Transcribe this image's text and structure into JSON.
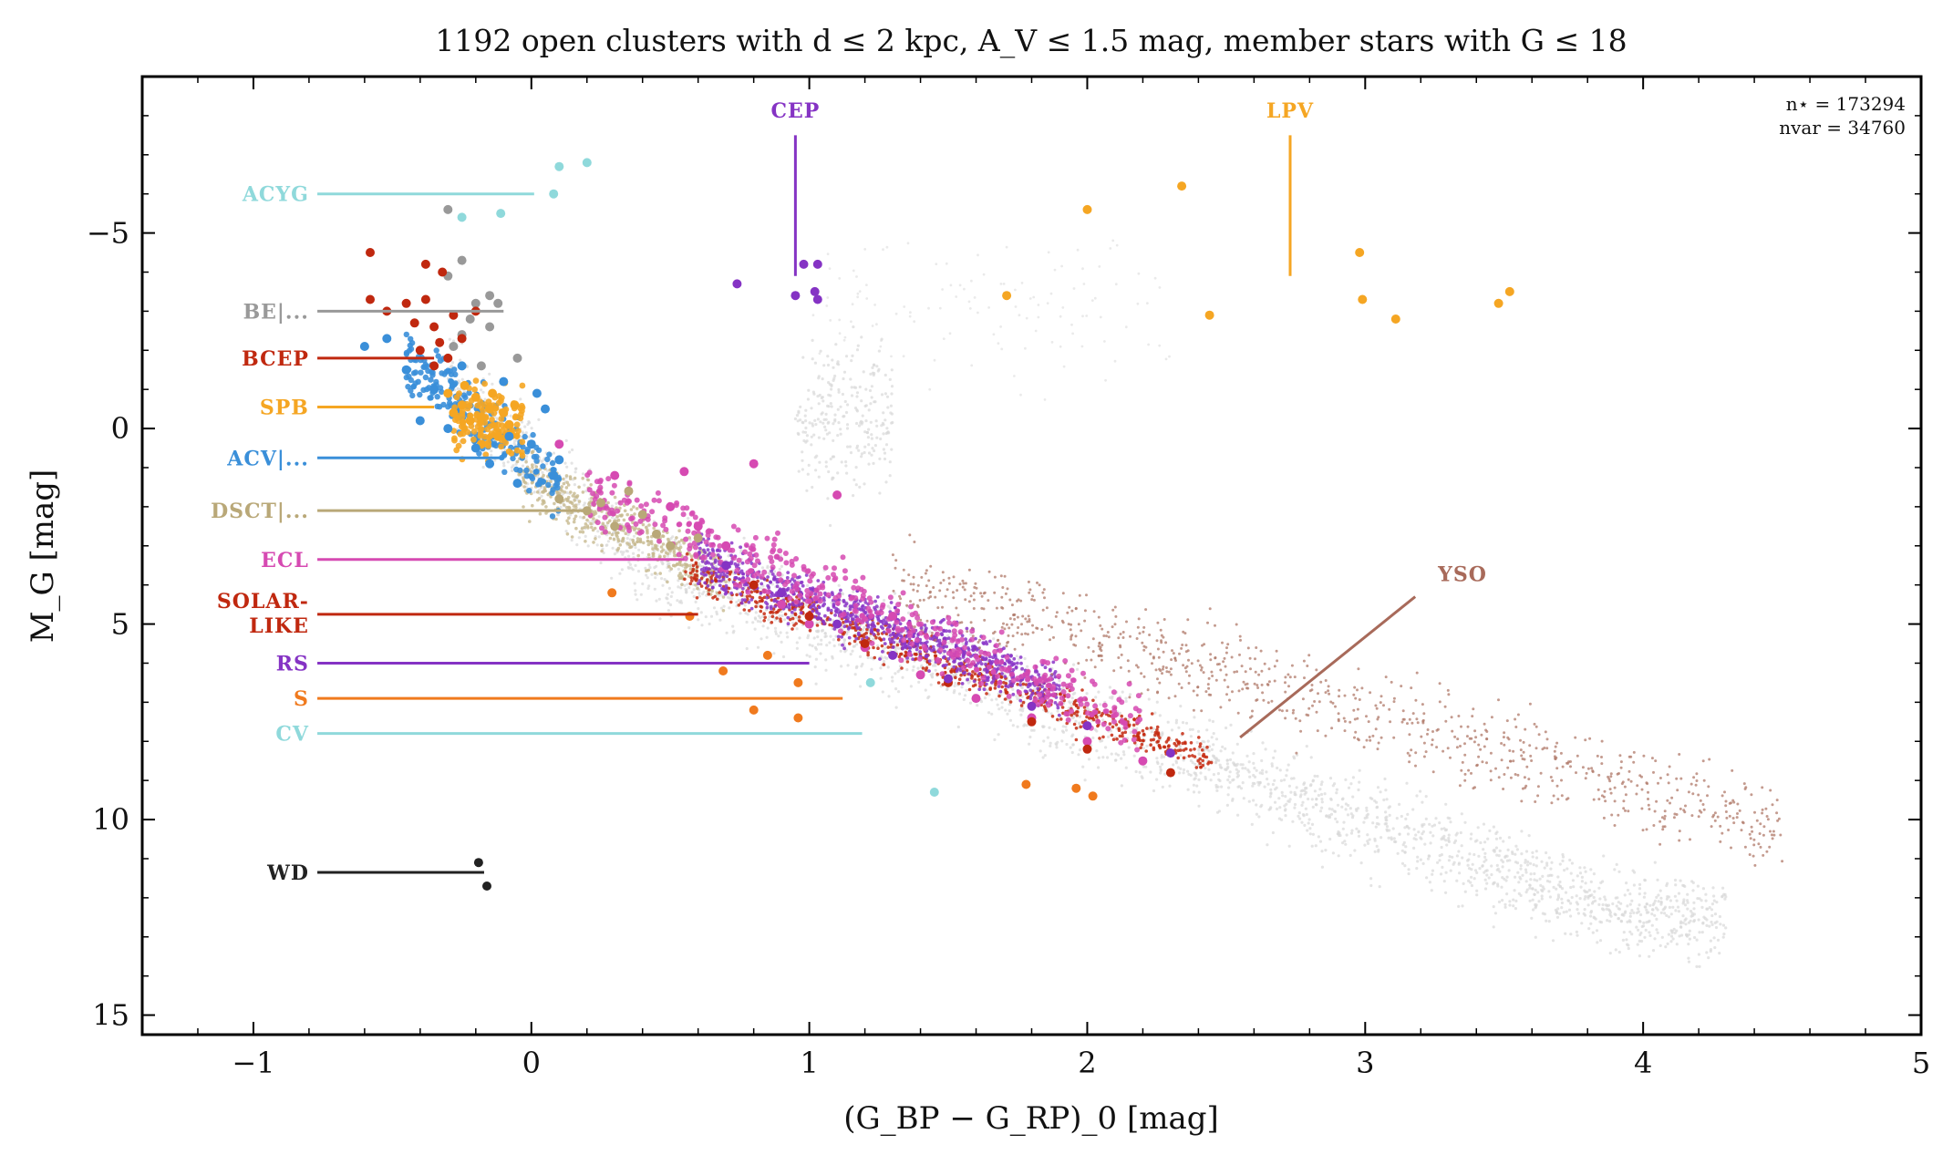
{
  "chart_data": {
    "type": "scatter",
    "title": "1192 open clusters with d ≤ 2 kpc, A_V ≤ 1.5 mag, member stars with G ≤ 18",
    "xlabel": "(G_BP − G_RP)_0 [mag]",
    "ylabel": "M_G [mag]",
    "xlim": [
      -1.4,
      5.0
    ],
    "ylim": [
      15.5,
      -9.0
    ],
    "y_inverted": true,
    "x_ticks": [
      -1,
      0,
      1,
      2,
      3,
      4,
      5
    ],
    "x_tick_labels": [
      "−1",
      "0",
      "1",
      "2",
      "3",
      "4",
      "5"
    ],
    "y_ticks": [
      -5,
      0,
      5,
      10,
      15
    ],
    "y_tick_labels": [
      "−5",
      "0",
      "5",
      "10",
      "15"
    ],
    "annotations": {
      "n_star": "n⋆ = 173294",
      "n_var": "nvar = 34760"
    },
    "background_color": "#d9d9d9",
    "series": [
      {
        "name": "ACYG",
        "color": "#8fd9db",
        "label_x": -0.8,
        "label_y": -6.0,
        "line_end_x": 0.01,
        "points": [
          [
            0.1,
            -6.7
          ],
          [
            0.2,
            -6.8
          ],
          [
            0.08,
            -6.0
          ],
          [
            -0.25,
            -5.4
          ],
          [
            -0.11,
            -5.5
          ]
        ]
      },
      {
        "name": "BE|...",
        "color": "#999999",
        "label_x": -0.8,
        "label_y": -3.0,
        "line_end_x": -0.1,
        "points": [
          [
            -0.3,
            -5.6
          ],
          [
            -0.25,
            -4.3
          ],
          [
            -0.3,
            -3.9
          ],
          [
            -0.2,
            -3.2
          ],
          [
            -0.15,
            -3.4
          ],
          [
            -0.12,
            -3.2
          ],
          [
            -0.22,
            -2.8
          ],
          [
            -0.25,
            -2.4
          ],
          [
            -0.05,
            -1.8
          ],
          [
            -0.18,
            -1.6
          ],
          [
            -0.28,
            -2.1
          ],
          [
            -0.15,
            -2.6
          ]
        ]
      },
      {
        "name": "BCEP",
        "color": "#c0280f",
        "label_x": -0.8,
        "label_y": -1.8,
        "line_end_x": -0.35,
        "points": [
          [
            -0.58,
            -4.5
          ],
          [
            -0.58,
            -3.3
          ],
          [
            -0.52,
            -3.0
          ],
          [
            -0.45,
            -3.2
          ],
          [
            -0.42,
            -2.7
          ],
          [
            -0.38,
            -3.3
          ],
          [
            -0.35,
            -2.6
          ],
          [
            -0.33,
            -2.2
          ],
          [
            -0.3,
            -1.8
          ],
          [
            -0.28,
            -2.9
          ],
          [
            -0.25,
            -2.3
          ],
          [
            -0.35,
            -1.6
          ],
          [
            -0.4,
            -2.0
          ],
          [
            -0.32,
            -4.0
          ],
          [
            -0.38,
            -4.2
          ],
          [
            -0.2,
            -3.0
          ]
        ]
      },
      {
        "name": "SPB",
        "color": "#f5a623",
        "label_x": -0.8,
        "label_y": -0.55,
        "line_end_x": -0.35,
        "points": [
          [
            -0.28,
            -0.4
          ],
          [
            -0.25,
            -0.6
          ],
          [
            -0.22,
            -0.2
          ],
          [
            -0.2,
            -0.8
          ],
          [
            -0.18,
            -0.3
          ],
          [
            -0.15,
            -0.5
          ],
          [
            -0.12,
            0.2
          ],
          [
            -0.1,
            -0.4
          ],
          [
            -0.08,
            -0.1
          ],
          [
            -0.14,
            -0.9
          ],
          [
            -0.24,
            -1.1
          ],
          [
            -0.3,
            -0.9
          ],
          [
            -0.18,
            0.4
          ],
          [
            -0.06,
            -0.6
          ]
        ]
      },
      {
        "name": "ACV|...",
        "color": "#3a8fd9",
        "label_x": -0.8,
        "label_y": 0.75,
        "line_end_x": -0.1,
        "points": [
          [
            -0.45,
            -1.5
          ],
          [
            -0.52,
            -2.3
          ],
          [
            -0.6,
            -2.1
          ],
          [
            -0.35,
            -1.0
          ],
          [
            -0.3,
            0.0
          ],
          [
            -0.2,
            0.5
          ],
          [
            -0.15,
            0.9
          ],
          [
            -0.05,
            1.4
          ],
          [
            0.0,
            0.4
          ],
          [
            0.05,
            -0.5
          ],
          [
            0.08,
            1.2
          ],
          [
            -0.1,
            -1.2
          ],
          [
            0.02,
            -0.9
          ],
          [
            -0.4,
            -0.2
          ],
          [
            -0.08,
            0.2
          ],
          [
            0.1,
            0.8
          ],
          [
            -0.25,
            -1.6
          ]
        ]
      },
      {
        "name": "DSCT|...",
        "color": "#b9a878",
        "label_x": -0.8,
        "label_y": 2.1,
        "line_end_x": 0.2,
        "points": [
          [
            0.1,
            1.8
          ],
          [
            0.2,
            2.1
          ],
          [
            0.3,
            2.5
          ],
          [
            0.4,
            2.2
          ],
          [
            0.5,
            3.0
          ],
          [
            0.6,
            2.8
          ],
          [
            0.35,
            1.6
          ],
          [
            0.45,
            2.7
          ],
          [
            0.25,
            1.9
          ]
        ]
      },
      {
        "name": "ECL",
        "color": "#d64ab2",
        "label_x": -0.8,
        "label_y": 3.35,
        "line_end_x": 0.55,
        "points": [
          [
            0.1,
            0.4
          ],
          [
            0.3,
            1.2
          ],
          [
            0.5,
            2.0
          ],
          [
            0.6,
            2.5
          ],
          [
            0.7,
            3.0
          ],
          [
            0.8,
            4.0
          ],
          [
            0.9,
            4.5
          ],
          [
            1.0,
            5.0
          ],
          [
            1.2,
            5.6
          ],
          [
            1.4,
            6.3
          ],
          [
            1.6,
            6.9
          ],
          [
            1.8,
            7.4
          ],
          [
            2.0,
            8.0
          ],
          [
            2.2,
            8.5
          ],
          [
            1.1,
            1.7
          ],
          [
            0.8,
            0.9
          ],
          [
            0.55,
            1.1
          ],
          [
            1.3,
            4.8
          ]
        ]
      },
      {
        "name": "SOLAR-LIKE",
        "color": "#c0280f",
        "label_x": -0.8,
        "label_y": 4.75,
        "line_end_x": 0.6,
        "points": [
          [
            0.8,
            4.0
          ],
          [
            1.0,
            4.8
          ],
          [
            1.2,
            5.5
          ],
          [
            1.5,
            6.5
          ],
          [
            1.8,
            7.5
          ],
          [
            2.0,
            8.2
          ],
          [
            2.3,
            8.8
          ]
        ]
      },
      {
        "name": "RS",
        "color": "#8533c4",
        "label_x": -0.8,
        "label_y": 6.0,
        "line_end_x": 1.0,
        "points": [
          [
            0.7,
            3.5
          ],
          [
            0.9,
            4.2
          ],
          [
            1.1,
            5.0
          ],
          [
            1.3,
            5.8
          ],
          [
            1.5,
            6.4
          ],
          [
            1.8,
            7.1
          ],
          [
            2.0,
            7.6
          ],
          [
            2.3,
            8.3
          ]
        ]
      },
      {
        "name": "S",
        "color": "#f07a1e",
        "label_x": -0.8,
        "label_y": 6.9,
        "line_end_x": 1.12,
        "points": [
          [
            0.29,
            4.2
          ],
          [
            0.57,
            4.8
          ],
          [
            0.69,
            6.2
          ],
          [
            0.8,
            7.2
          ],
          [
            0.96,
            6.5
          ],
          [
            0.96,
            7.4
          ],
          [
            0.85,
            5.8
          ],
          [
            1.78,
            9.1
          ],
          [
            1.96,
            9.2
          ],
          [
            2.02,
            9.4
          ]
        ]
      },
      {
        "name": "CV",
        "color": "#8fd9db",
        "label_x": -0.8,
        "label_y": 7.8,
        "line_end_x": 1.19,
        "points": [
          [
            1.45,
            9.3
          ],
          [
            1.22,
            6.5
          ]
        ]
      },
      {
        "name": "CEP",
        "color": "#8533c4",
        "label_x": 0.95,
        "label_y": -7.95,
        "line_start_y": -7.5,
        "line_end_y": -3.9,
        "points": [
          [
            0.74,
            -3.7
          ],
          [
            0.95,
            -3.4
          ],
          [
            0.98,
            -4.2
          ],
          [
            1.02,
            -3.5
          ],
          [
            1.03,
            -3.3
          ],
          [
            1.03,
            -4.2
          ]
        ]
      },
      {
        "name": "LPV",
        "color": "#f5a623",
        "label_x": 2.73,
        "label_y": -7.95,
        "line_start_y": -7.5,
        "line_end_y": -3.9,
        "points": [
          [
            1.71,
            -3.4
          ],
          [
            2.0,
            -5.6
          ],
          [
            2.34,
            -6.2
          ],
          [
            2.44,
            -2.9
          ],
          [
            2.98,
            -4.5
          ],
          [
            2.99,
            -3.3
          ],
          [
            3.11,
            -2.8
          ],
          [
            3.48,
            -3.2
          ],
          [
            3.52,
            -3.5
          ]
        ]
      },
      {
        "name": "YSO",
        "color": "#a86a5a",
        "label_x": 3.35,
        "label_y": 3.9,
        "line_start_x": 3.18,
        "line_start_y": 4.3,
        "line_end_x": 2.55,
        "line_end_y": 7.9,
        "points": []
      },
      {
        "name": "WD",
        "color": "#222222",
        "label_x": -0.8,
        "label_y": 11.35,
        "line_end_x": -0.17,
        "points": [
          [
            -0.19,
            11.1
          ],
          [
            -0.16,
            11.7
          ]
        ]
      }
    ]
  }
}
